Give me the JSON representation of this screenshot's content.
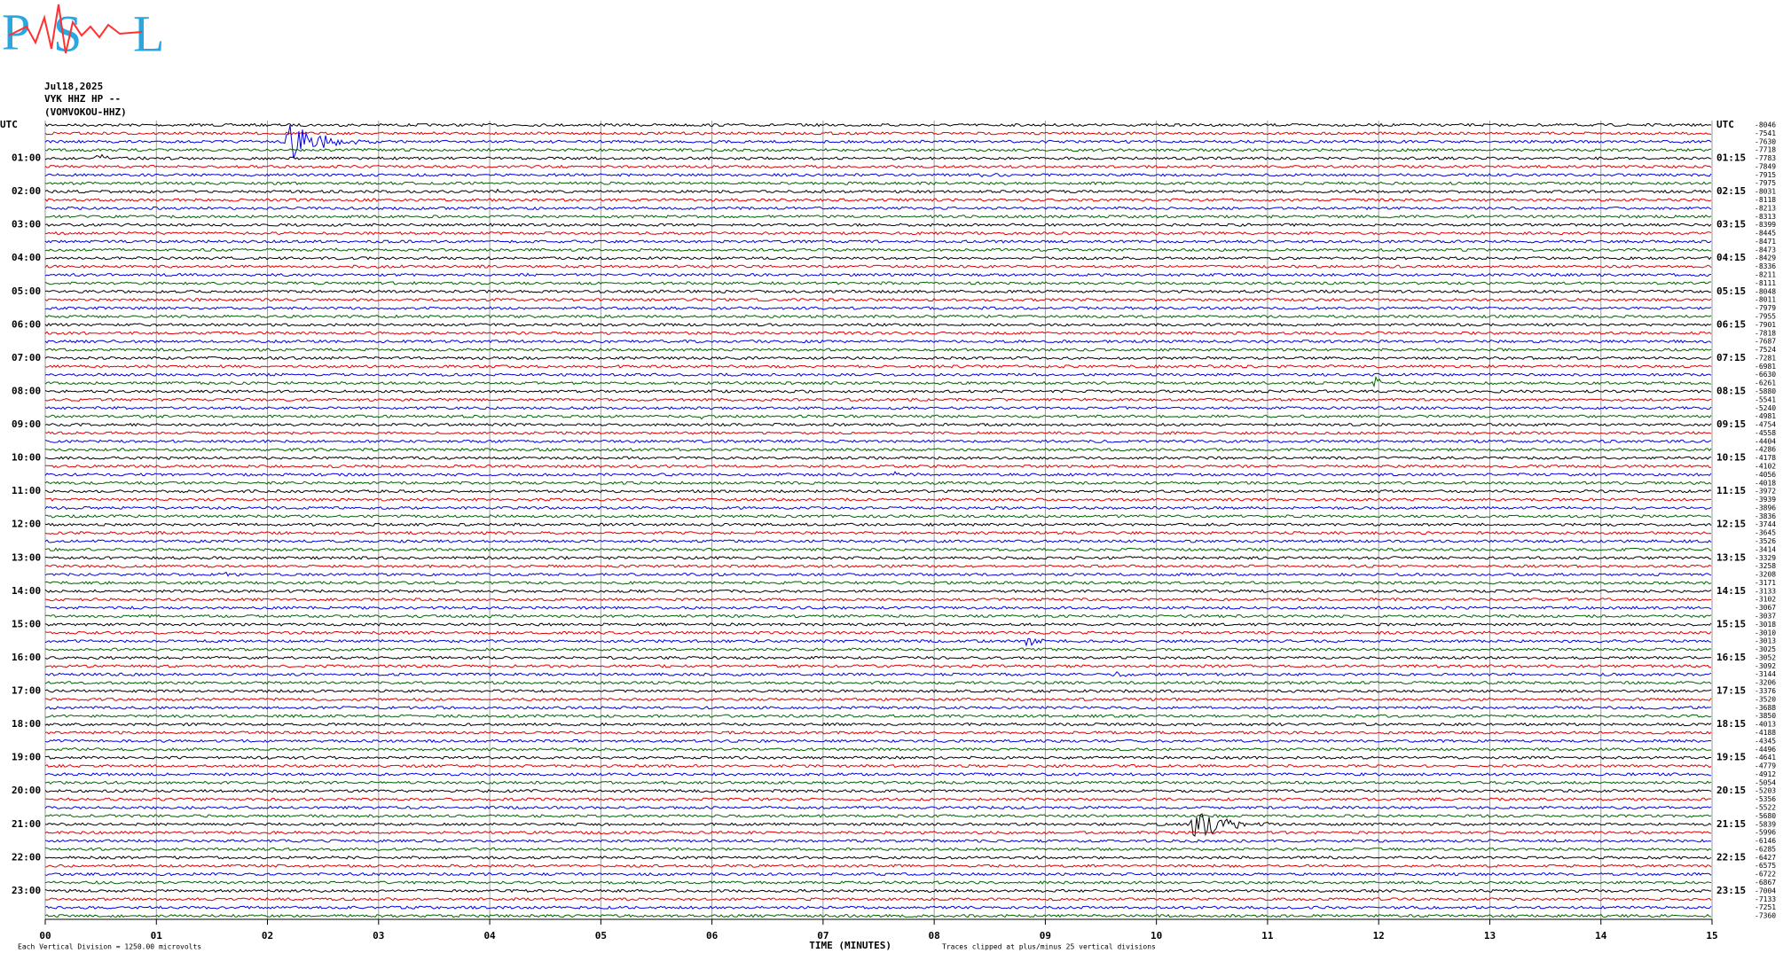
{
  "chart_data": {
    "type": "helicorder",
    "logo": [
      "P",
      "S",
      "L"
    ],
    "date": "Jul18,2025",
    "station": "VYK HHZ HP --",
    "station_name": "(VOMVOKOU-HHZ)",
    "left_labels": [
      "UTC",
      "01:00",
      "02:00",
      "03:00",
      "04:00",
      "05:00",
      "06:00",
      "07:00",
      "08:00",
      "09:00",
      "10:00",
      "11:00",
      "12:00",
      "13:00",
      "14:00",
      "15:00",
      "16:00",
      "17:00",
      "18:00",
      "19:00",
      "20:00",
      "21:00",
      "22:00",
      "23:00"
    ],
    "right_labels": [
      "UTC",
      "01:15",
      "02:15",
      "03:15",
      "04:15",
      "05:15",
      "06:15",
      "07:15",
      "08:15",
      "09:15",
      "10:15",
      "11:15",
      "12:15",
      "13:15",
      "14:15",
      "15:15",
      "16:15",
      "17:15",
      "18:15",
      "19:15",
      "20:15",
      "21:15",
      "22:15",
      "23:15"
    ],
    "offsets": [
      -8046,
      -7541,
      -7630,
      -7718,
      -7783,
      -7849,
      -7915,
      -7975,
      -8031,
      -8118,
      -8213,
      -8313,
      -8399,
      -8445,
      -8471,
      -8473,
      -8429,
      -8336,
      -8211,
      -8111,
      -8048,
      -8011,
      -7979,
      -7955,
      -7901,
      -7818,
      -7687,
      -7524,
      -7281,
      -6981,
      -6630,
      -6261,
      -5880,
      -5541,
      -5240,
      -4981,
      -4754,
      -4558,
      -4404,
      -4286,
      -4178,
      -4102,
      -4056,
      -4018,
      -3972,
      -3939,
      -3896,
      -3836,
      -3744,
      -3645,
      -3526,
      -3414,
      -3329,
      -3258,
      -3208,
      -3171,
      -3133,
      -3102,
      -3067,
      -3037,
      -3018,
      -3010,
      -3013,
      -3025,
      -3052,
      -3092,
      -3144,
      -3206,
      -3376,
      -3520,
      -3688,
      -3850,
      -4013,
      -4188,
      -4345,
      -4496,
      -4641,
      -4779,
      -4912,
      -5054,
      -5203,
      -5356,
      -5522,
      -5680,
      -5839,
      -5996,
      -6146,
      -6285,
      -6427,
      -6575,
      -6722,
      -6867,
      -7004,
      -7133,
      -7251,
      -7360
    ],
    "trace_colors": [
      "#000000",
      "#e00000",
      "#0000e0",
      "#006400"
    ],
    "xlim": [
      0,
      15
    ],
    "xticks": [
      {
        "value": 0,
        "label": "00"
      },
      {
        "value": 1,
        "label": "01"
      },
      {
        "value": 2,
        "label": "02"
      },
      {
        "value": 3,
        "label": "03"
      },
      {
        "value": 4,
        "label": "04"
      },
      {
        "value": 5,
        "label": "05"
      },
      {
        "value": 6,
        "label": "06"
      },
      {
        "value": 7,
        "label": "07"
      },
      {
        "value": 8,
        "label": "08"
      },
      {
        "value": 9,
        "label": "09"
      },
      10,
      11,
      12,
      13,
      14,
      15
    ],
    "xlabel": "TIME (MINUTES)",
    "scale_note": "Each Vertical Division = 1250.00 microvolts",
    "clip_note": "Traces clipped at plus/minus 25 vertical divisions",
    "grid": true
  }
}
